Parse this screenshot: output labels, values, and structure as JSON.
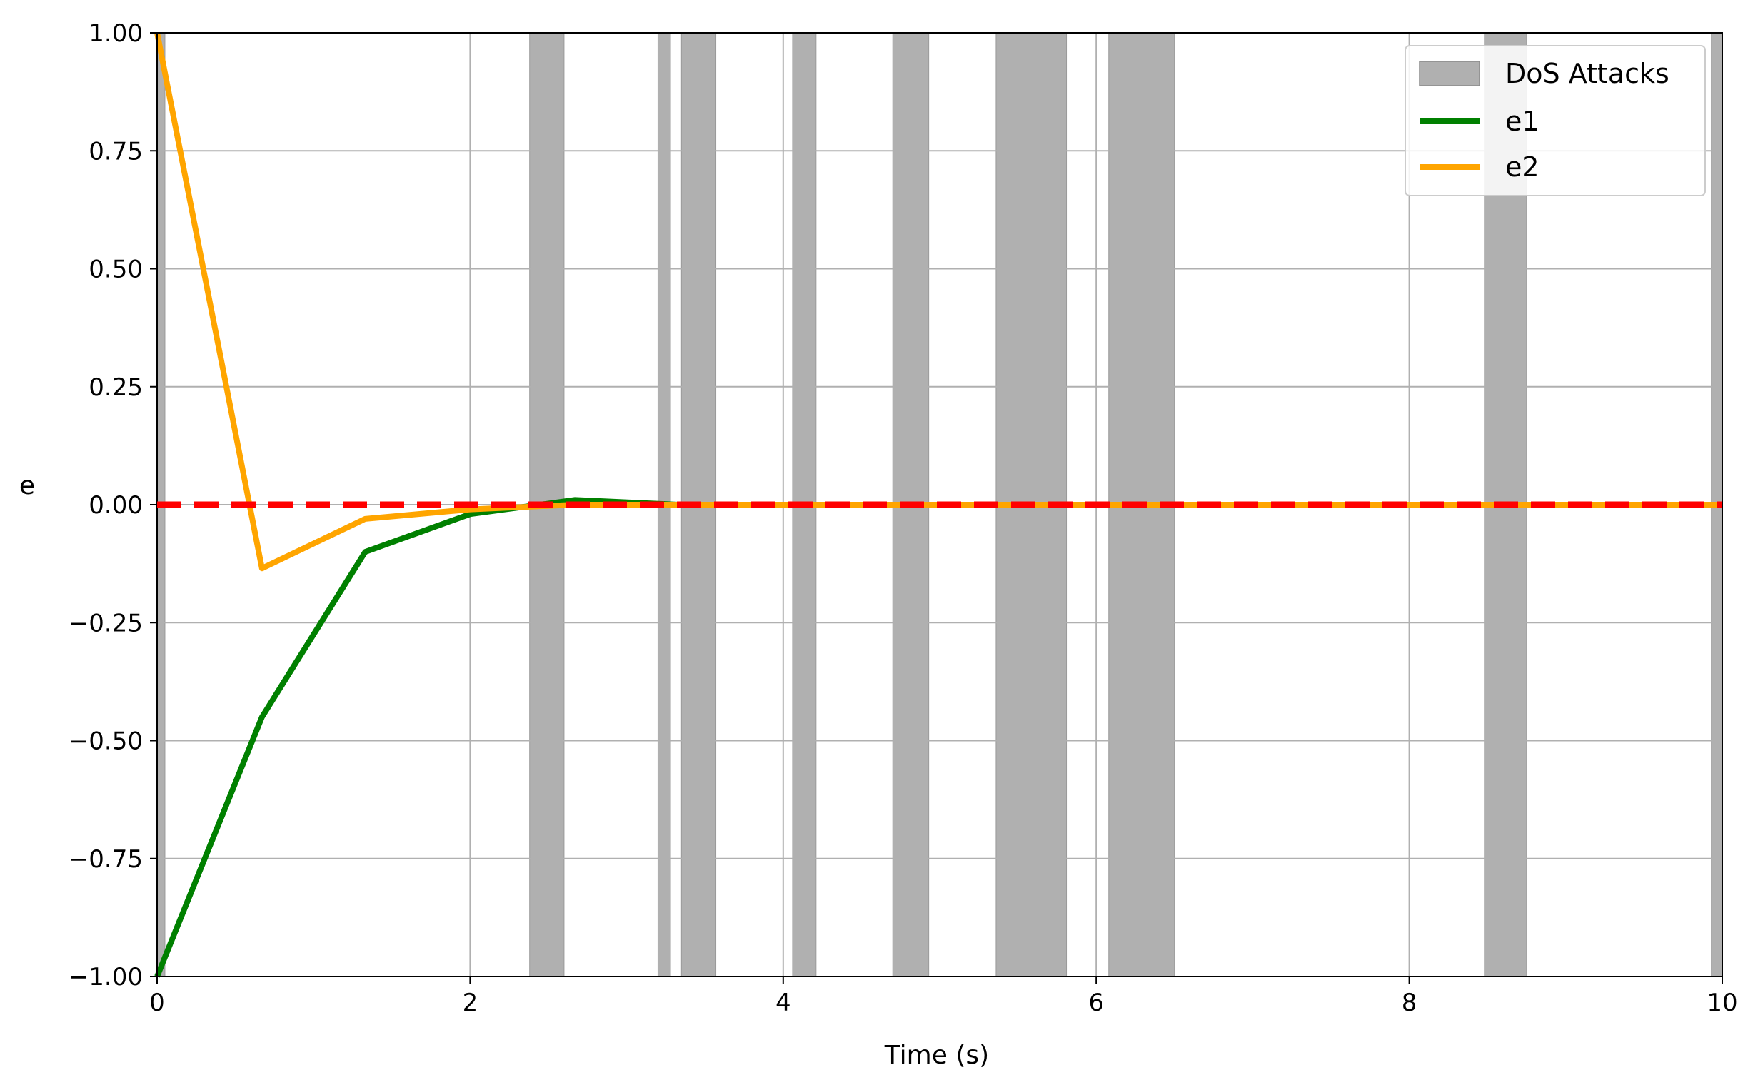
{
  "chart_data": {
    "type": "line",
    "title": "",
    "xlabel": "Time (s)",
    "ylabel": "e",
    "xlim": [
      0,
      10
    ],
    "ylim": [
      -1,
      1
    ],
    "grid": true,
    "legend_position": "top-right",
    "x_ticks": [
      0,
      2,
      4,
      6,
      8,
      10
    ],
    "x_tick_labels": [
      "0",
      "2",
      "4",
      "6",
      "8",
      "10"
    ],
    "y_ticks": [
      1,
      0.75,
      0.5,
      0.25,
      0,
      -0.25,
      -0.5,
      -0.75,
      -1
    ],
    "y_tick_labels": [
      "1.00",
      "0.75",
      "0.50",
      "0.25",
      "0.00",
      "−0.25",
      "−0.50",
      "−0.75",
      "−1.00"
    ],
    "attack_intervals": [
      [
        0.0,
        0.05
      ],
      [
        2.38,
        2.6
      ],
      [
        3.2,
        3.28
      ],
      [
        3.35,
        3.57
      ],
      [
        4.06,
        4.21
      ],
      [
        4.7,
        4.93
      ],
      [
        5.36,
        5.81
      ],
      [
        6.08,
        6.5
      ],
      [
        8.48,
        8.75
      ],
      [
        9.93,
        10.0
      ]
    ],
    "attack_name": "DoS Attacks",
    "attack_color": "#b0b0b0",
    "series": [
      {
        "name": "e1",
        "color": "#008000",
        "x": [
          0,
          0.67,
          1.33,
          2.0,
          2.67,
          3.33,
          4.0,
          10.0
        ],
        "values": [
          -1.0,
          -0.45,
          -0.1,
          -0.02,
          0.01,
          0.0,
          0.0,
          0.0
        ]
      },
      {
        "name": "e2",
        "color": "#ffa500",
        "x": [
          0,
          0.67,
          1.33,
          2.0,
          2.67,
          3.33,
          10.0
        ],
        "values": [
          1.0,
          -0.135,
          -0.03,
          -0.01,
          0.0,
          0.0,
          0.0
        ]
      }
    ],
    "reference_line": {
      "y": 0,
      "color": "#ff0000",
      "style": "dashed"
    }
  }
}
